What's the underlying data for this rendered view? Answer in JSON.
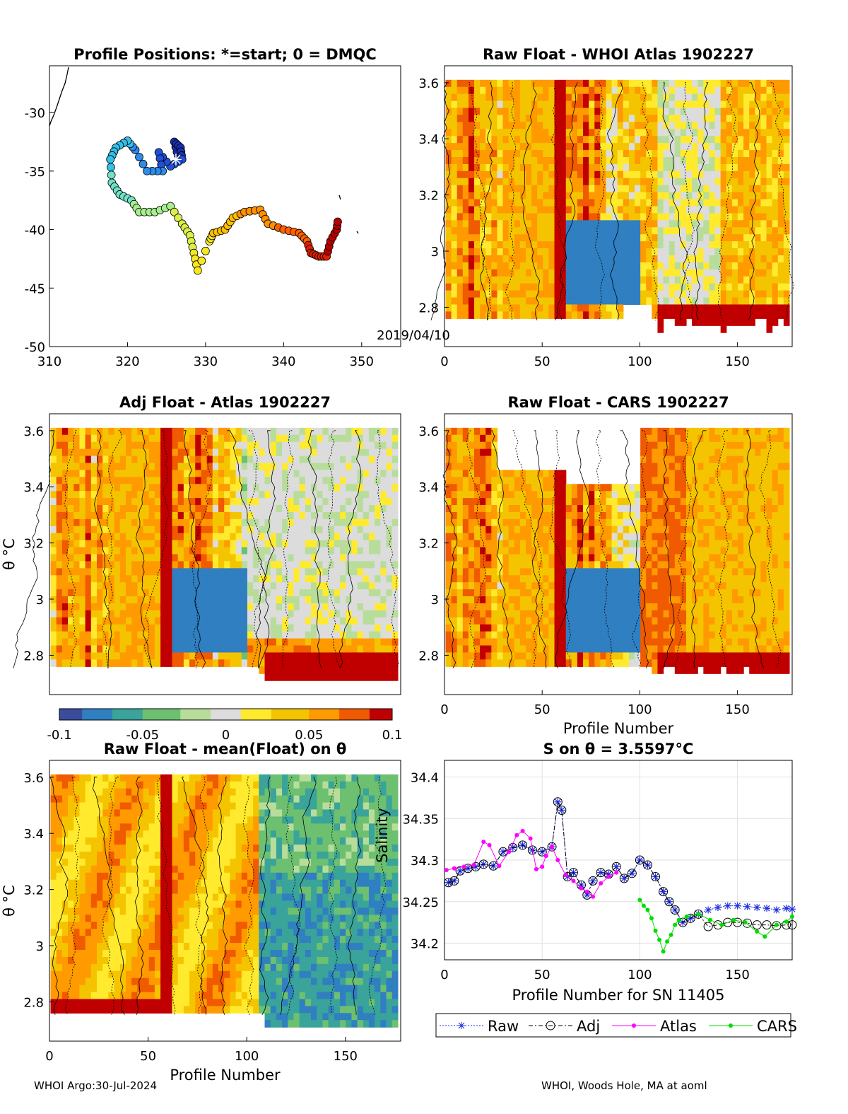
{
  "footer": {
    "left": "WHOI Argo:30-Jul-2024",
    "right": "WHOI, Woods Hole, MA at aoml"
  },
  "colors": {
    "scale": [
      "#3b4d9a",
      "#2f7fc1",
      "#3aa39a",
      "#6cc070",
      "#b8dd9a",
      "#dcdcdc",
      "#ffea2e",
      "#f5c400",
      "#ff9a00",
      "#f05a00",
      "#c00000"
    ],
    "raw": "#2030e0",
    "adj": "#000000",
    "atlas": "#ff00ff",
    "cars": "#00dd00"
  },
  "chart_data": [
    {
      "type": "scatter",
      "title": "Profile Positions: *=start; 0 = DMQC",
      "xlim": [
        310,
        355
      ],
      "ylim": [
        -50,
        -26
      ],
      "xticks": [
        "310",
        "320",
        "330",
        "340",
        "350"
      ],
      "yticks": [
        "-30",
        "-35",
        "-40",
        "-45",
        "-50"
      ],
      "annotation": "2019/04/10",
      "track": [
        [
          326.5,
          -33.8
        ],
        [
          326,
          -32.5
        ],
        [
          326.8,
          -33
        ],
        [
          327,
          -34
        ],
        [
          325.5,
          -34.6
        ],
        [
          324,
          -33.4
        ],
        [
          324.5,
          -35
        ],
        [
          322.5,
          -35
        ],
        [
          321,
          -33.2
        ],
        [
          320,
          -32.4
        ],
        [
          318.5,
          -33
        ],
        [
          317.8,
          -34
        ],
        [
          318,
          -36
        ],
        [
          319,
          -37
        ],
        [
          320.5,
          -37.5
        ],
        [
          321.5,
          -38.5
        ],
        [
          323.5,
          -38.5
        ],
        [
          325.5,
          -38
        ],
        [
          327,
          -39.5
        ],
        [
          328,
          -40.5
        ],
        [
          328.5,
          -42
        ],
        [
          329,
          -43.5
        ],
        [
          330.5,
          -41
        ],
        [
          331,
          -40.3
        ],
        [
          332.5,
          -40
        ],
        [
          333.5,
          -39
        ],
        [
          335,
          -38.5
        ],
        [
          337,
          -38.3
        ],
        [
          338,
          -39.5
        ],
        [
          340,
          -40
        ],
        [
          342,
          -40.3
        ],
        [
          343,
          -41
        ],
        [
          343.5,
          -42
        ],
        [
          344.5,
          -42.3
        ],
        [
          345.5,
          -42.3
        ],
        [
          346,
          -41
        ],
        [
          346.8,
          -40
        ],
        [
          347,
          -39
        ]
      ],
      "start": [
        326.2,
        -34
      ]
    },
    {
      "type": "heatmap",
      "title": "Raw Float - WHOI Atlas  1902227",
      "xlim": [
        0,
        178
      ],
      "ylim": [
        2.66,
        3.66
      ],
      "xticks": [
        "0",
        "50",
        "100",
        "150"
      ],
      "yticks": [
        "2.8",
        "3",
        "3.2",
        "3.4",
        "3.6"
      ],
      "xlabel": "",
      "seed": 11,
      "mode": "atlas"
    },
    {
      "type": "heatmap",
      "title": "Adj Float - Atlas  1902227",
      "xlim": [
        0,
        178
      ],
      "ylim": [
        2.66,
        3.66
      ],
      "yticks": [
        "2.8",
        "3",
        "3.2",
        "3.4",
        "3.6"
      ],
      "ylabel": "θ °C",
      "seed": 23,
      "mode": "adj"
    },
    {
      "type": "heatmap",
      "title": "Raw Float - CARS  1902227",
      "xlim": [
        0,
        178
      ],
      "ylim": [
        2.66,
        3.66
      ],
      "xticks": [
        "0",
        "50",
        "100",
        "150"
      ],
      "yticks": [
        "2.8",
        "3",
        "3.2",
        "3.4",
        "3.6"
      ],
      "xlabel": "Profile Number",
      "seed": 37,
      "mode": "cars"
    },
    {
      "type": "heatmap",
      "title": "Raw Float - mean(Float) on θ",
      "xlim": [
        0,
        178
      ],
      "ylim": [
        2.66,
        3.66
      ],
      "xticks": [
        "0",
        "50",
        "100",
        "150"
      ],
      "yticks": [
        "2.8",
        "3",
        "3.2",
        "3.4",
        "3.6"
      ],
      "xlabel": "Profile Number",
      "ylabel": "θ °C",
      "seed": 53,
      "mode": "mean"
    },
    {
      "type": "line",
      "title": "S on θ = 3.5597°C",
      "xlim": [
        0,
        178
      ],
      "ylim": [
        34.18,
        34.42
      ],
      "xticks": [
        "0",
        "50",
        "100",
        "150"
      ],
      "yticks": [
        "34.2",
        "34.25",
        "34.3",
        "34.35",
        "34.4"
      ],
      "xlabel": "Profile Number for SN 11405",
      "ylabel": "Salinity",
      "series": [
        {
          "name": "Raw",
          "x": [
            2,
            5,
            8,
            12,
            16,
            20,
            25,
            30,
            35,
            40,
            45,
            50,
            55,
            58,
            60,
            63,
            66,
            70,
            73,
            76,
            80,
            84,
            88,
            92,
            96,
            100,
            104,
            108,
            112,
            115,
            118,
            122,
            126,
            130,
            135,
            140,
            145,
            150,
            155,
            160,
            165,
            170,
            175,
            178
          ],
          "values": [
            34.273,
            34.275,
            34.287,
            34.29,
            34.292,
            34.295,
            34.293,
            34.31,
            34.315,
            34.318,
            34.312,
            34.31,
            34.316,
            34.37,
            34.36,
            34.28,
            34.285,
            34.27,
            34.258,
            34.275,
            34.285,
            34.283,
            34.292,
            34.278,
            34.284,
            34.3,
            34.294,
            34.28,
            34.262,
            34.25,
            34.24,
            34.225,
            34.23,
            34.235,
            34.24,
            34.243,
            34.245,
            34.245,
            34.244,
            34.243,
            34.242,
            34.24,
            34.242,
            34.241
          ]
        },
        {
          "name": "Adj",
          "x": [
            2,
            5,
            8,
            12,
            16,
            20,
            25,
            30,
            35,
            40,
            45,
            50,
            55,
            58,
            60,
            63,
            66,
            70,
            73,
            76,
            80,
            84,
            88,
            92,
            96,
            100,
            104,
            108,
            112,
            115,
            118,
            122,
            126,
            130,
            135,
            140,
            145,
            150,
            155,
            160,
            165,
            170,
            175,
            178
          ],
          "values": [
            34.273,
            34.275,
            34.287,
            34.29,
            34.292,
            34.295,
            34.293,
            34.31,
            34.315,
            34.318,
            34.312,
            34.31,
            34.316,
            34.37,
            34.36,
            34.28,
            34.285,
            34.27,
            34.258,
            34.275,
            34.285,
            34.283,
            34.292,
            34.278,
            34.284,
            34.3,
            34.294,
            34.28,
            34.262,
            34.25,
            34.24,
            34.225,
            34.23,
            34.235,
            34.22,
            34.222,
            34.225,
            34.225,
            34.224,
            34.222,
            34.222,
            34.221,
            34.222,
            34.222
          ]
        },
        {
          "name": "Atlas",
          "x": [
            1,
            5,
            10,
            15,
            20,
            23,
            28,
            33,
            37,
            40,
            44,
            47,
            50,
            52,
            55,
            58,
            62,
            66,
            70,
            73,
            76,
            80,
            84,
            88
          ],
          "values": [
            34.288,
            34.29,
            34.292,
            34.294,
            34.322,
            34.318,
            34.293,
            34.31,
            34.33,
            34.335,
            34.326,
            34.289,
            34.292,
            34.305,
            34.316,
            34.3,
            34.282,
            34.275,
            34.266,
            34.262,
            34.256,
            34.272,
            34.28,
            34.285
          ]
        },
        {
          "name": "CARS",
          "x": [
            100,
            102,
            104,
            106,
            108,
            110,
            112,
            114,
            116,
            118,
            120,
            124,
            130,
            136,
            142,
            148,
            154,
            160,
            164,
            170,
            175,
            178
          ],
          "values": [
            34.252,
            34.245,
            34.24,
            34.23,
            34.215,
            34.204,
            34.19,
            34.202,
            34.21,
            34.222,
            34.228,
            34.232,
            34.235,
            34.228,
            34.222,
            34.228,
            34.225,
            34.214,
            34.208,
            34.222,
            34.226,
            34.232
          ]
        }
      ],
      "legend": [
        "Raw",
        "Adj",
        "Atlas",
        "CARS"
      ]
    }
  ],
  "colorbar": {
    "ticks": [
      "-0.1",
      "-0.05",
      "0",
      "0.05",
      "0.1"
    ]
  }
}
